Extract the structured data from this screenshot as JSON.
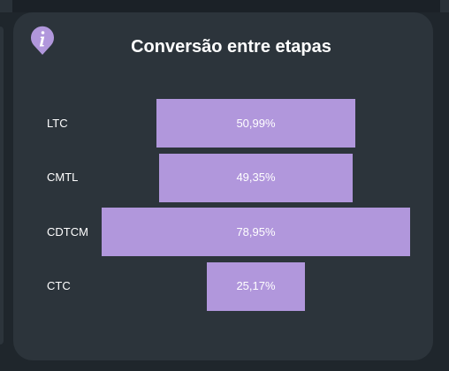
{
  "card": {
    "title": "Conversão entre etapas",
    "info_icon": "info-icon"
  },
  "colors": {
    "background": "#1f262c",
    "card": "#2c343b",
    "bar": "#b197dc",
    "text": "#ffffff"
  },
  "chart_data": {
    "type": "bar",
    "orientation": "horizontal-funnel",
    "title": "Conversão entre etapas",
    "categories": [
      "LTC",
      "CMTL",
      "CDTCM",
      "CTC"
    ],
    "values": [
      50.99,
      49.35,
      78.95,
      25.17
    ],
    "value_labels": [
      "50,99%",
      "49,35%",
      "78,95%",
      "25,17%"
    ],
    "unit": "%",
    "bars_centered": true,
    "legend": "none",
    "grid": false
  }
}
